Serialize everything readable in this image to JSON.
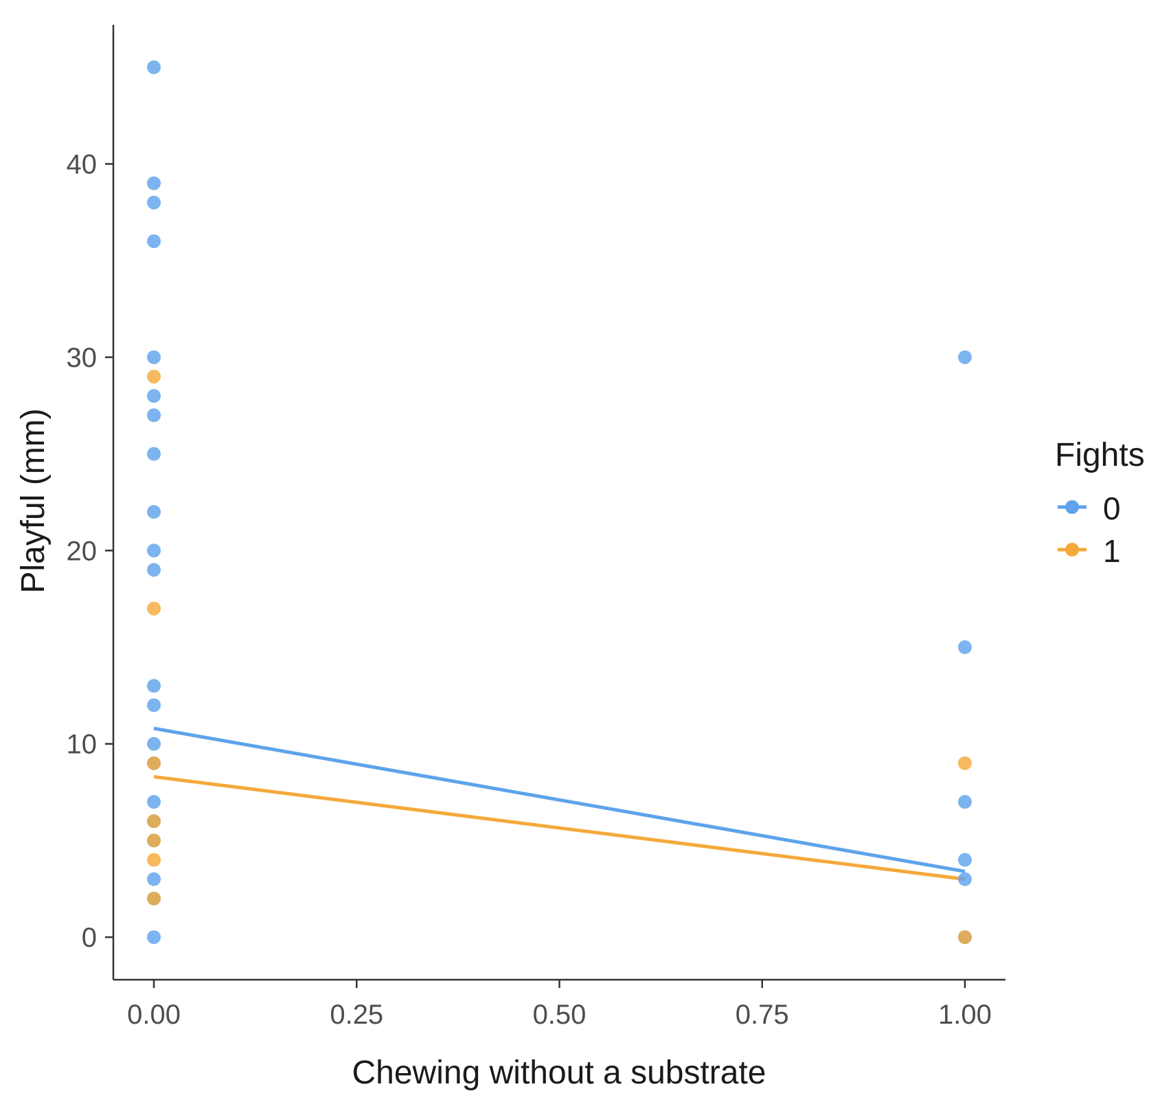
{
  "chart_data": {
    "type": "scatter",
    "title": "",
    "xlabel": "Chewing without a substrate",
    "ylabel": "Playful (mm)",
    "xlim": [
      -0.05,
      1.05
    ],
    "ylim": [
      -2.2,
      47.2
    ],
    "x_ticks": [
      0.0,
      0.25,
      0.5,
      0.75,
      1.0
    ],
    "x_tick_labels": [
      "0.00",
      "0.25",
      "0.50",
      "0.75",
      "1.00"
    ],
    "y_ticks": [
      0,
      10,
      20,
      30,
      40
    ],
    "y_tick_labels": [
      "0",
      "10",
      "20",
      "30",
      "40"
    ],
    "grid": false,
    "legend": {
      "title": "Fights",
      "position": "right"
    },
    "series": [
      {
        "name": "0",
        "color": "#5ea3eb",
        "points": [
          [
            0,
            45
          ],
          [
            0,
            39
          ],
          [
            0,
            38
          ],
          [
            0,
            36
          ],
          [
            0,
            30
          ],
          [
            0,
            28
          ],
          [
            0,
            27
          ],
          [
            0,
            25
          ],
          [
            0,
            22
          ],
          [
            0,
            20
          ],
          [
            0,
            19
          ],
          [
            0,
            13
          ],
          [
            0,
            12
          ],
          [
            0,
            10
          ],
          [
            0,
            9
          ],
          [
            0,
            7
          ],
          [
            0,
            6
          ],
          [
            0,
            5
          ],
          [
            0,
            3
          ],
          [
            0,
            2
          ],
          [
            0,
            0
          ],
          [
            1,
            30
          ],
          [
            1,
            15
          ],
          [
            1,
            7
          ],
          [
            1,
            4
          ],
          [
            1,
            3
          ],
          [
            1,
            0
          ]
        ],
        "fit": {
          "x": [
            0,
            1
          ],
          "y": [
            10.8,
            3.4
          ]
        }
      },
      {
        "name": "1",
        "color": "#f5a93a",
        "points": [
          [
            0,
            29
          ],
          [
            0,
            17
          ],
          [
            0,
            9
          ],
          [
            0,
            6
          ],
          [
            0,
            5
          ],
          [
            0,
            4
          ],
          [
            0,
            2
          ],
          [
            1,
            9
          ],
          [
            1,
            0
          ]
        ],
        "fit": {
          "x": [
            0,
            1
          ],
          "y": [
            8.3,
            3.0
          ]
        }
      }
    ]
  }
}
